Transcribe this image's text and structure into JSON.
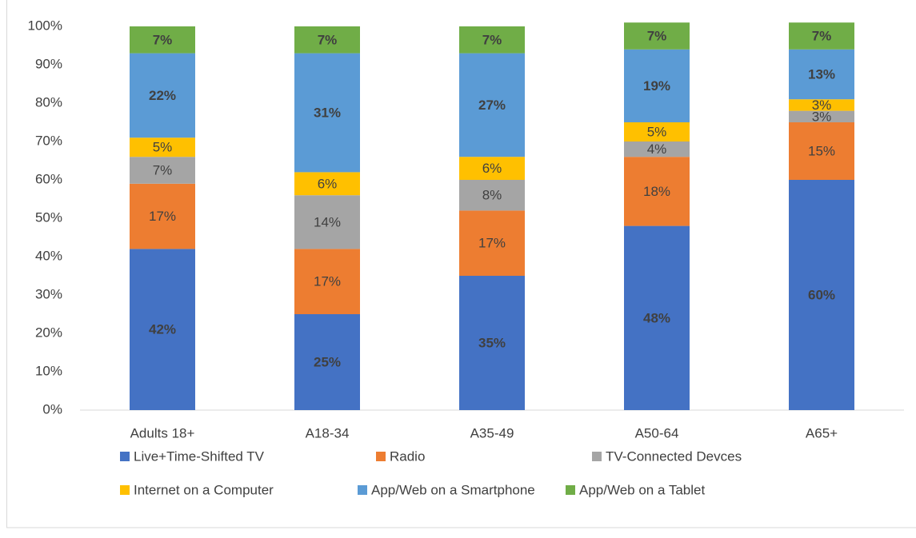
{
  "chart_data": {
    "type": "stacked_bar",
    "categories": [
      "Adults 18+",
      "A18-34",
      "A35-49",
      "A50-64",
      "A65+"
    ],
    "series": [
      {
        "name": "Live+Time-Shifted TV",
        "color": "#4472c4",
        "values": [
          42,
          25,
          35,
          48,
          60
        ],
        "value_labels": [
          "42%",
          "25%",
          "35%",
          "48%",
          "60%"
        ]
      },
      {
        "name": "Radio",
        "color": "#ed7d31",
        "values": [
          17,
          17,
          17,
          18,
          15
        ],
        "value_labels": [
          "17%",
          "17%",
          "17%",
          "18%",
          "15%"
        ]
      },
      {
        "name": "TV-Connected Devces",
        "color": "#a5a5a5",
        "values": [
          7,
          14,
          8,
          4,
          3
        ],
        "value_labels": [
          "7%",
          "14%",
          "8%",
          "4%",
          "3%"
        ]
      },
      {
        "name": "Internet on a Computer",
        "color": "#ffc000",
        "values": [
          5,
          6,
          6,
          5,
          3
        ],
        "value_labels": [
          "5%",
          "6%",
          "6%",
          "5%",
          "3%"
        ]
      },
      {
        "name": "App/Web on a Smartphone",
        "color": "#5b9bd5",
        "values": [
          22,
          31,
          27,
          19,
          13
        ],
        "value_labels": [
          "22%",
          "31%",
          "27%",
          "19%",
          "13%"
        ]
      },
      {
        "name": "App/Web on a Tablet",
        "color": "#70ad47",
        "values": [
          7,
          7,
          7,
          7,
          7
        ],
        "value_labels": [
          "7%",
          "7%",
          "7%",
          "7%",
          "7%"
        ]
      }
    ],
    "ylim": [
      0,
      100
    ],
    "yticks": [
      {
        "value": 0,
        "label": "0%"
      },
      {
        "value": 10,
        "label": "10%"
      },
      {
        "value": 20,
        "label": "20%"
      },
      {
        "value": 30,
        "label": "30%"
      },
      {
        "value": 40,
        "label": "40%"
      },
      {
        "value": 50,
        "label": "50%"
      },
      {
        "value": 60,
        "label": "60%"
      },
      {
        "value": 70,
        "label": "70%"
      },
      {
        "value": 80,
        "label": "80%"
      },
      {
        "value": 90,
        "label": "90%"
      },
      {
        "value": 100,
        "label": "100%"
      }
    ],
    "grid": false,
    "legend": "bottom"
  }
}
